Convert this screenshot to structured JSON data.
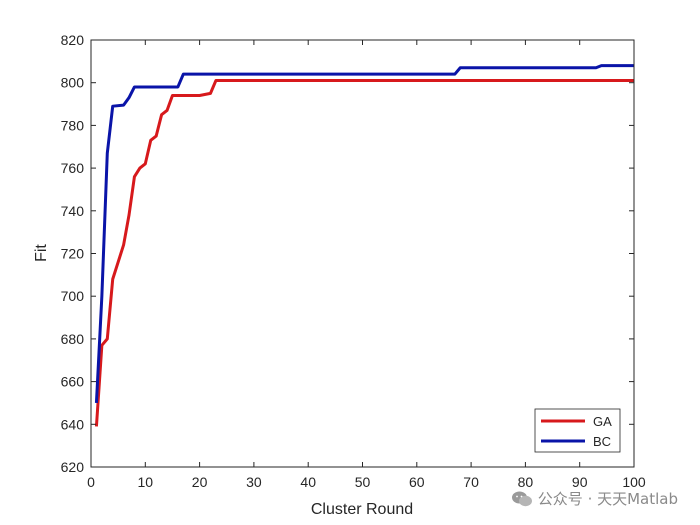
{
  "chart_data": {
    "type": "line",
    "title": "",
    "xlabel": "Cluster Round",
    "ylabel": "Fit",
    "xlim": [
      0,
      100
    ],
    "ylim": [
      620,
      820
    ],
    "xticks": [
      0,
      10,
      20,
      30,
      40,
      50,
      60,
      70,
      80,
      90,
      100
    ],
    "yticks": [
      620,
      640,
      660,
      680,
      700,
      720,
      740,
      760,
      780,
      800,
      820
    ],
    "grid": false,
    "legend_position": "bottom-right",
    "series": [
      {
        "name": "GA",
        "color": "#d7191c",
        "points": [
          [
            1,
            639
          ],
          [
            2,
            677
          ],
          [
            3,
            680
          ],
          [
            4,
            708
          ],
          [
            5,
            716
          ],
          [
            6,
            724
          ],
          [
            7,
            738
          ],
          [
            8,
            756
          ],
          [
            9,
            760
          ],
          [
            10,
            762
          ],
          [
            11,
            773
          ],
          [
            12,
            775
          ],
          [
            13,
            785
          ],
          [
            14,
            787
          ],
          [
            15,
            794
          ],
          [
            16,
            794
          ],
          [
            20,
            794
          ],
          [
            22,
            795
          ],
          [
            23,
            801
          ],
          [
            100,
            801
          ]
        ]
      },
      {
        "name": "BC",
        "color": "#0a14a8",
        "points": [
          [
            1,
            650
          ],
          [
            2,
            700
          ],
          [
            3,
            767
          ],
          [
            4,
            789
          ],
          [
            6,
            789.5
          ],
          [
            7,
            793
          ],
          [
            8,
            798
          ],
          [
            16,
            798
          ],
          [
            17,
            804
          ],
          [
            67,
            804
          ],
          [
            68,
            807
          ],
          [
            93,
            807
          ],
          [
            94,
            808
          ],
          [
            100,
            808
          ]
        ]
      }
    ]
  },
  "watermark": {
    "text": "公众号 · 天天Matlab"
  }
}
